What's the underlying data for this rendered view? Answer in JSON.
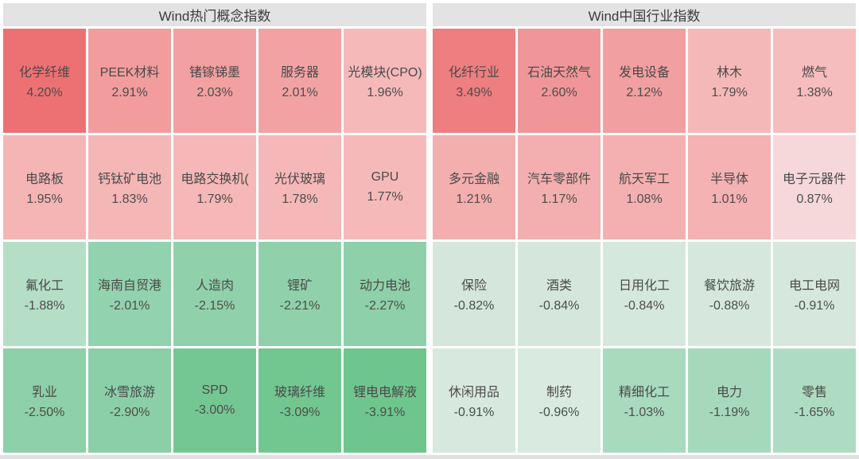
{
  "accent_colors": {
    "strong_up": "#ed7173",
    "strong_down": "#6fc58e",
    "header_bg": "#e3e3e3",
    "text": "#4a4a4a"
  },
  "chart_data": [
    {
      "type": "heatmap",
      "title": "Wind热门概念指数",
      "legend_position": "none",
      "rows": [
        [
          {
            "label": "化学纤维",
            "value": 4.2,
            "display": "4.20%",
            "color": "#ed7173"
          },
          {
            "label": "PEEK材料",
            "value": 2.91,
            "display": "2.91%",
            "color": "#f29c9e"
          },
          {
            "label": "锗镓锑墨",
            "value": 2.03,
            "display": "2.03%",
            "color": "#f2a0a1"
          },
          {
            "label": "服务器",
            "value": 2.01,
            "display": "2.01%",
            "color": "#f2a2a3"
          },
          {
            "label": "光模块(CPO)",
            "value": 1.96,
            "display": "1.96%",
            "color": "#f5b9ba"
          }
        ],
        [
          {
            "label": "电路板",
            "value": 1.95,
            "display": "1.95%",
            "color": "#f5b5b5"
          },
          {
            "label": "钙钛矿电池",
            "value": 1.83,
            "display": "1.83%",
            "color": "#f5b6b6"
          },
          {
            "label": "电路交换机(",
            "value": 1.79,
            "display": "1.79%",
            "color": "#f5b7b7"
          },
          {
            "label": "光伏玻璃",
            "value": 1.78,
            "display": "1.78%",
            "color": "#f5b7b7"
          },
          {
            "label": "GPU",
            "value": 1.77,
            "display": "1.77%",
            "color": "#f6b9b9"
          }
        ],
        [
          {
            "label": "氟化工",
            "value": -1.88,
            "display": "-1.88%",
            "color": "#b5dec7"
          },
          {
            "label": "海南自贸港",
            "value": -2.01,
            "display": "-2.01%",
            "color": "#92d2ae"
          },
          {
            "label": "人造肉",
            "value": -2.15,
            "display": "-2.15%",
            "color": "#90d1ac"
          },
          {
            "label": "锂矿",
            "value": -2.21,
            "display": "-2.21%",
            "color": "#90d1ab"
          },
          {
            "label": "动力电池",
            "value": -2.27,
            "display": "-2.27%",
            "color": "#8ed0aa"
          }
        ],
        [
          {
            "label": "乳业",
            "value": -2.5,
            "display": "-2.50%",
            "color": "#8dd0a9"
          },
          {
            "label": "冰雪旅游",
            "value": -2.9,
            "display": "-2.90%",
            "color": "#8bcfa8"
          },
          {
            "label": "SPD",
            "value": -3.0,
            "display": "-3.00%",
            "color": "#74c792"
          },
          {
            "label": "玻璃纤维",
            "value": -3.09,
            "display": "-3.09%",
            "color": "#72c690"
          },
          {
            "label": "锂电电解液",
            "value": -3.91,
            "display": "-3.91%",
            "color": "#6fc58e"
          }
        ]
      ]
    },
    {
      "type": "heatmap",
      "title": "Wind中国行业指数",
      "legend_position": "none",
      "rows": [
        [
          {
            "label": "化纤行业",
            "value": 3.49,
            "display": "3.49%",
            "color": "#ee7e80"
          },
          {
            "label": "石油天然气",
            "value": 2.6,
            "display": "2.60%",
            "color": "#f09698"
          },
          {
            "label": "发电设备",
            "value": 2.12,
            "display": "2.12%",
            "color": "#f19fa0"
          },
          {
            "label": "林木",
            "value": 1.79,
            "display": "1.79%",
            "color": "#f5b8b9"
          },
          {
            "label": "燃气",
            "value": 1.38,
            "display": "1.38%",
            "color": "#f6bdbe"
          }
        ],
        [
          {
            "label": "多元金融",
            "value": 1.21,
            "display": "1.21%",
            "color": "#f3aeae"
          },
          {
            "label": "汽车零部件",
            "value": 1.17,
            "display": "1.17%",
            "color": "#f3afaf"
          },
          {
            "label": "航天军工",
            "value": 1.08,
            "display": "1.08%",
            "color": "#f4b0b0"
          },
          {
            "label": "半导体",
            "value": 1.01,
            "display": "1.01%",
            "color": "#f4b2b2"
          },
          {
            "label": "电子元器件",
            "value": 0.87,
            "display": "0.87%",
            "color": "#f6d8da"
          }
        ],
        [
          {
            "label": "保险",
            "value": -0.82,
            "display": "-0.82%",
            "color": "#d5e7dc"
          },
          {
            "label": "酒类",
            "value": -0.84,
            "display": "-0.84%",
            "color": "#d5e7dc"
          },
          {
            "label": "日用化工",
            "value": -0.84,
            "display": "-0.84%",
            "color": "#d5e8dd"
          },
          {
            "label": "餐饮旅游",
            "value": -0.88,
            "display": "-0.88%",
            "color": "#d6e8dd"
          },
          {
            "label": "电工电网",
            "value": -0.91,
            "display": "-0.91%",
            "color": "#d6e8de"
          }
        ],
        [
          {
            "label": "休闲用品",
            "value": -0.91,
            "display": "-0.91%",
            "color": "#d7e9df"
          },
          {
            "label": "制药",
            "value": -0.96,
            "display": "-0.96%",
            "color": "#d9eae0"
          },
          {
            "label": "精细化工",
            "value": -1.03,
            "display": "-1.03%",
            "color": "#a8dabd"
          },
          {
            "label": "电力",
            "value": -1.19,
            "display": "-1.19%",
            "color": "#a6d9bb"
          },
          {
            "label": "零售",
            "value": -1.65,
            "display": "-1.65%",
            "color": "#aedcc2"
          }
        ]
      ]
    }
  ]
}
